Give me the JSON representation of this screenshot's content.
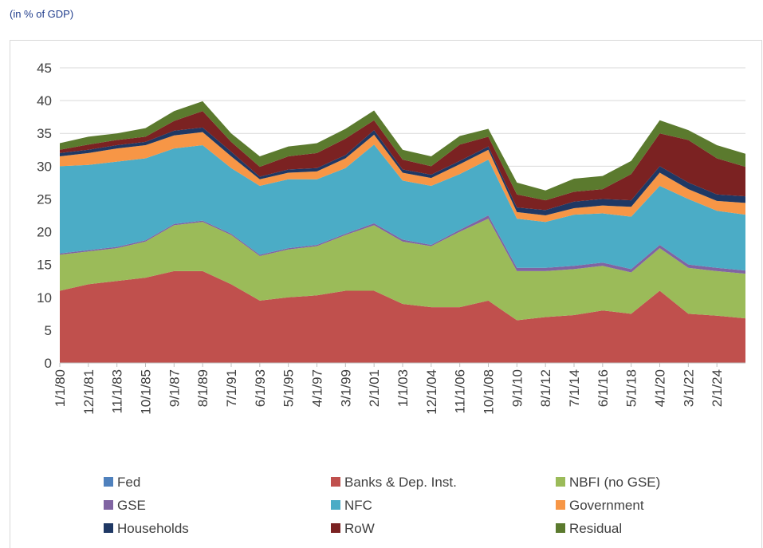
{
  "chart_data": {
    "type": "stacked-area",
    "subtitle": "(in % of GDP)",
    "categories": [
      "1/1/80",
      "12/1/81",
      "11/1/83",
      "10/1/85",
      "9/1/87",
      "8/1/89",
      "7/1/91",
      "6/1/93",
      "5/1/95",
      "4/1/97",
      "3/1/99",
      "2/1/01",
      "1/1/03",
      "12/1/04",
      "11/1/06",
      "10/1/08",
      "9/1/10",
      "8/1/12",
      "7/1/14",
      "6/1/16",
      "5/1/18",
      "4/1/20",
      "3/1/22",
      "2/1/24",
      null
    ],
    "series": [
      {
        "name": "Fed",
        "color": "#4f81bd",
        "values": [
          0,
          0,
          0,
          0,
          0,
          0,
          0,
          0,
          0,
          0,
          0,
          0,
          0,
          0,
          0,
          0,
          0,
          0,
          0,
          0,
          0,
          0,
          0,
          0,
          0
        ]
      },
      {
        "name": "Banks & Dep. Inst.",
        "color": "#c0504d",
        "values": [
          11,
          12,
          12.5,
          13,
          14,
          14,
          12,
          9.5,
          10,
          10.3,
          11,
          11,
          9,
          8.5,
          8.5,
          9.5,
          6.5,
          7,
          7.3,
          8,
          7.5,
          11,
          7.5,
          7.2,
          6.8
        ]
      },
      {
        "name": "NBFI (no GSE)",
        "color": "#9bbb59",
        "values": [
          5.5,
          5,
          5,
          5.5,
          7,
          7.5,
          7.5,
          6.8,
          7.3,
          7.5,
          8.5,
          10,
          9.5,
          9.3,
          11.5,
          12.5,
          7.5,
          7,
          7,
          6.8,
          6.3,
          6.5,
          7,
          6.8,
          6.8
        ]
      },
      {
        "name": "GSE",
        "color": "#8064a2",
        "values": [
          0.2,
          0.2,
          0.2,
          0.2,
          0.2,
          0.2,
          0.2,
          0.2,
          0.2,
          0.2,
          0.2,
          0.3,
          0.3,
          0.2,
          0.3,
          0.5,
          0.5,
          0.5,
          0.5,
          0.5,
          0.5,
          0.5,
          0.5,
          0.5,
          0.5
        ]
      },
      {
        "name": "NFC",
        "color": "#4bacc6",
        "values": [
          13.3,
          13,
          13,
          12.5,
          11.5,
          11.5,
          10,
          10.5,
          10.5,
          10,
          10,
          12,
          9,
          9,
          8.5,
          8.5,
          7.5,
          7,
          7.8,
          7.5,
          8,
          9,
          10,
          8.7,
          8.5
        ]
      },
      {
        "name": "Government",
        "color": "#f79646",
        "values": [
          1.5,
          1.8,
          2,
          2,
          2,
          2,
          1.8,
          1,
          1,
          1.2,
          1.5,
          1.5,
          1.2,
          1.2,
          1.5,
          1.5,
          1,
          1,
          1,
          1.2,
          1.5,
          2,
          1.5,
          1.5,
          1.8
        ]
      },
      {
        "name": "Households",
        "color": "#1f3864",
        "values": [
          0.5,
          0.5,
          0.5,
          0.5,
          0.7,
          0.7,
          0.7,
          0.4,
          0.5,
          0.5,
          0.5,
          0.7,
          0.5,
          0.5,
          0.5,
          0.5,
          0.7,
          0.8,
          1,
          1,
          1,
          1,
          1,
          1,
          1
        ]
      },
      {
        "name": "RoW",
        "color": "#7b2222",
        "values": [
          0.5,
          0.8,
          0.8,
          0.8,
          1.5,
          2.5,
          1.5,
          1.5,
          2,
          2.3,
          2.5,
          1.5,
          1.5,
          1.3,
          2.5,
          1.5,
          2,
          1.5,
          1.5,
          1.5,
          4,
          5,
          6.5,
          5.5,
          4.5
        ]
      },
      {
        "name": "Residual",
        "color": "#5b7a2e",
        "values": [
          1,
          1.2,
          1,
          1.3,
          1.5,
          1.5,
          1.3,
          1.6,
          1.5,
          1.5,
          1.5,
          1.5,
          1.5,
          1.5,
          1.3,
          1.2,
          1.8,
          1.5,
          2,
          2,
          2,
          2,
          1.5,
          2,
          2
        ]
      }
    ],
    "ylim": [
      0,
      45
    ],
    "yticks": [
      0,
      5,
      10,
      15,
      20,
      25,
      30,
      35,
      40,
      45
    ],
    "grid": true
  }
}
